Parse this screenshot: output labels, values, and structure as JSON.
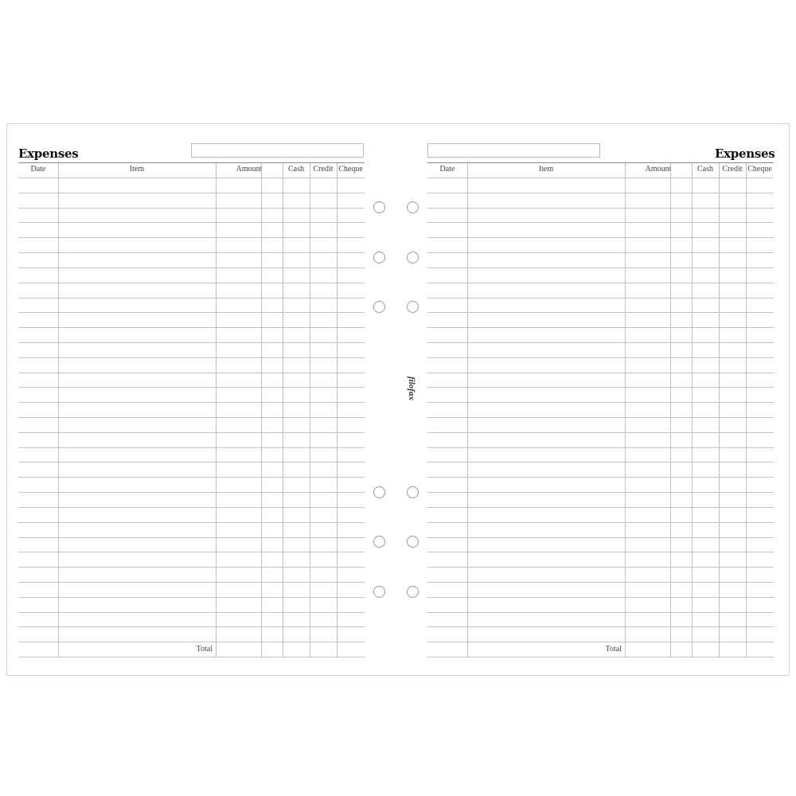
{
  "left_page": {
    "title": "Expenses",
    "columns": [
      "Date",
      "Item",
      "Amount",
      "Cash",
      "Credit",
      "Cheque"
    ],
    "total_label": "Total"
  },
  "right_page": {
    "title": "Expenses",
    "columns": [
      "Date",
      "Item",
      "Amount",
      "Cash",
      "Credit",
      "Cheque"
    ],
    "total_label": "Total"
  },
  "brand": {
    "logo": "filofax"
  }
}
